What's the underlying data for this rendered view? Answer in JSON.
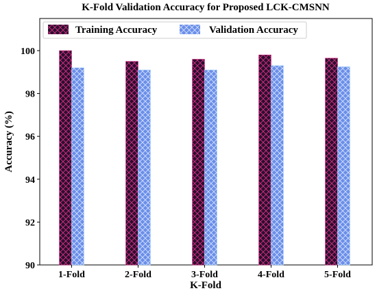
{
  "chart_data": {
    "type": "bar",
    "title": "K-Fold Validation Accuracy for Proposed LCK-CMSNN",
    "xlabel": "K-Fold",
    "ylabel": "Accuracy (%)",
    "categories": [
      "1-Fold",
      "2-Fold",
      "3-Fold",
      "4-Fold",
      "5-Fold"
    ],
    "ylim": [
      90,
      101.5
    ],
    "yticks": [
      90,
      92,
      94,
      96,
      98,
      100
    ],
    "grid": false,
    "legend_position": "top",
    "series": [
      {
        "name": "Training Accuracy",
        "values": [
          100.0,
          99.5,
          99.6,
          99.8,
          99.65
        ],
        "color": "#2b0f2e",
        "hatch_color": "#e0308a"
      },
      {
        "name": "Validation Accuracy",
        "values": [
          99.2,
          99.1,
          99.1,
          99.3,
          99.25
        ],
        "color": "#6b8fe8",
        "hatch_color": "#d9e4ff"
      }
    ]
  }
}
